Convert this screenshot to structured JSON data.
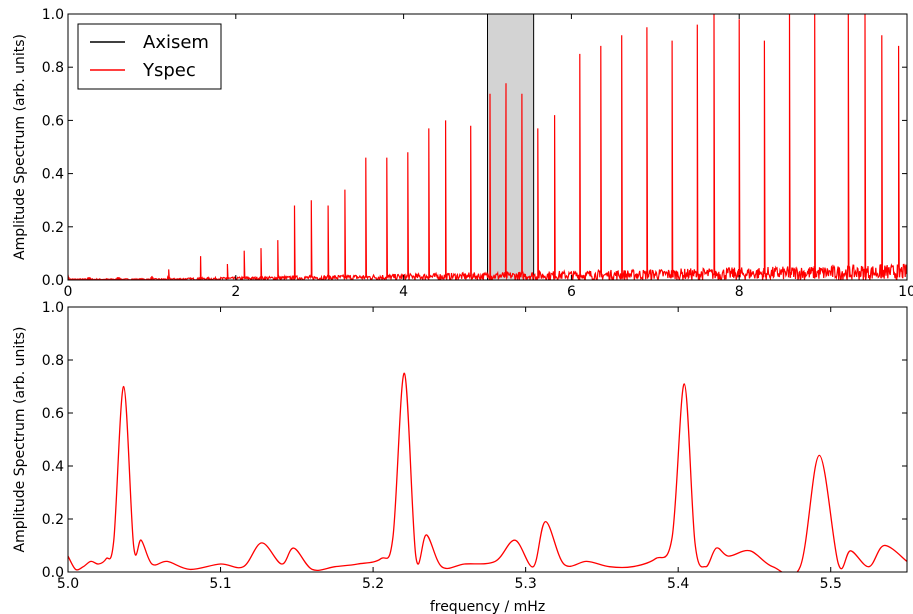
{
  "chart_data": [
    {
      "type": "line",
      "title": "",
      "xlabel": "",
      "ylabel": "Amplitude Spectrum (arb. units)",
      "xlim": [
        0,
        10
      ],
      "ylim": [
        0,
        1.0
      ],
      "xticks": [
        "0",
        "2",
        "4",
        "6",
        "8",
        "10"
      ],
      "yticks": [
        "0.0",
        "0.2",
        "0.4",
        "0.6",
        "0.8",
        "1.0"
      ],
      "grid": false,
      "legend": {
        "position": "top-left",
        "entries": [
          {
            "name": "Axisem",
            "color": "#000000"
          },
          {
            "name": "Yspec",
            "color": "#ff0000"
          }
        ]
      },
      "highlight_region": {
        "x": [
          5.0,
          5.55
        ],
        "color": "#d3d3d3"
      },
      "series": [
        {
          "name": "Yspec",
          "color": "#ff0000",
          "peaks": [
            {
              "x": 0.0,
              "y": 0.02
            },
            {
              "x": 0.25,
              "y": 0.01
            },
            {
              "x": 0.6,
              "y": 0.01
            },
            {
              "x": 1.0,
              "y": 0.015
            },
            {
              "x": 1.2,
              "y": 0.04
            },
            {
              "x": 1.58,
              "y": 0.09
            },
            {
              "x": 1.9,
              "y": 0.06
            },
            {
              "x": 2.1,
              "y": 0.11
            },
            {
              "x": 2.3,
              "y": 0.12
            },
            {
              "x": 2.5,
              "y": 0.15
            },
            {
              "x": 2.7,
              "y": 0.28
            },
            {
              "x": 2.9,
              "y": 0.3
            },
            {
              "x": 3.1,
              "y": 0.28
            },
            {
              "x": 3.3,
              "y": 0.34
            },
            {
              "x": 3.55,
              "y": 0.46
            },
            {
              "x": 3.8,
              "y": 0.46
            },
            {
              "x": 4.05,
              "y": 0.48
            },
            {
              "x": 4.3,
              "y": 0.57
            },
            {
              "x": 4.5,
              "y": 0.6
            },
            {
              "x": 4.8,
              "y": 0.58
            },
            {
              "x": 5.03,
              "y": 0.7
            },
            {
              "x": 5.22,
              "y": 0.74
            },
            {
              "x": 5.41,
              "y": 0.7
            },
            {
              "x": 5.6,
              "y": 0.57
            },
            {
              "x": 5.8,
              "y": 0.62
            },
            {
              "x": 6.1,
              "y": 0.85
            },
            {
              "x": 6.35,
              "y": 0.88
            },
            {
              "x": 6.6,
              "y": 0.92
            },
            {
              "x": 6.9,
              "y": 0.95
            },
            {
              "x": 7.2,
              "y": 0.9
            },
            {
              "x": 7.5,
              "y": 0.96
            },
            {
              "x": 7.7,
              "y": 1.0
            },
            {
              "x": 8.0,
              "y": 0.98
            },
            {
              "x": 8.3,
              "y": 0.9
            },
            {
              "x": 8.6,
              "y": 1.0
            },
            {
              "x": 8.9,
              "y": 1.0
            },
            {
              "x": 9.3,
              "y": 1.0
            },
            {
              "x": 9.5,
              "y": 1.0
            },
            {
              "x": 9.7,
              "y": 0.92
            },
            {
              "x": 9.9,
              "y": 0.88
            }
          ]
        },
        {
          "name": "Axisem",
          "color": "#000000",
          "note_overlap": "hidden beneath Yspec"
        }
      ]
    },
    {
      "type": "line",
      "title": "",
      "xlabel": "frequency / mHz",
      "ylabel": "Amplitude Spectrum (arb. units)",
      "xlim": [
        5.0,
        5.55
      ],
      "ylim": [
        0,
        1.0
      ],
      "xticks": [
        "5.0",
        "5.1",
        "5.2",
        "5.3",
        "5.4",
        "5.5"
      ],
      "yticks": [
        "0.0",
        "0.2",
        "0.4",
        "0.6",
        "0.8",
        "1.0"
      ],
      "grid": false,
      "series": [
        {
          "name": "Yspec",
          "color": "#ff0000",
          "x": [
            5.0,
            5.005,
            5.01,
            5.015,
            5.02,
            5.025,
            5.03,
            5.0365,
            5.043,
            5.048,
            5.055,
            5.065,
            5.08,
            5.1,
            5.115,
            5.127,
            5.14,
            5.148,
            5.16,
            5.175,
            5.19,
            5.205,
            5.213,
            5.2205,
            5.228,
            5.235,
            5.245,
            5.26,
            5.28,
            5.293,
            5.305,
            5.313,
            5.325,
            5.34,
            5.355,
            5.37,
            5.385,
            5.396,
            5.404,
            5.411,
            5.418,
            5.425,
            5.433,
            5.447,
            5.462,
            5.48,
            5.4925,
            5.505,
            5.513,
            5.525,
            5.535,
            5.55
          ],
          "y": [
            0.06,
            0.01,
            0.02,
            0.04,
            0.03,
            0.05,
            0.12,
            0.7,
            0.1,
            0.12,
            0.03,
            0.04,
            0.01,
            0.03,
            0.02,
            0.11,
            0.03,
            0.09,
            0.01,
            0.02,
            0.03,
            0.05,
            0.13,
            0.75,
            0.06,
            0.14,
            0.02,
            0.03,
            0.04,
            0.12,
            0.02,
            0.19,
            0.03,
            0.04,
            0.02,
            0.02,
            0.05,
            0.13,
            0.71,
            0.11,
            0.02,
            0.09,
            0.06,
            0.08,
            0.02,
            0.02,
            0.44,
            0.03,
            0.08,
            0.02,
            0.1,
            0.04
          ]
        },
        {
          "name": "Axisem",
          "color": "#000000",
          "note_overlap": "hidden beneath Yspec"
        }
      ]
    }
  ]
}
